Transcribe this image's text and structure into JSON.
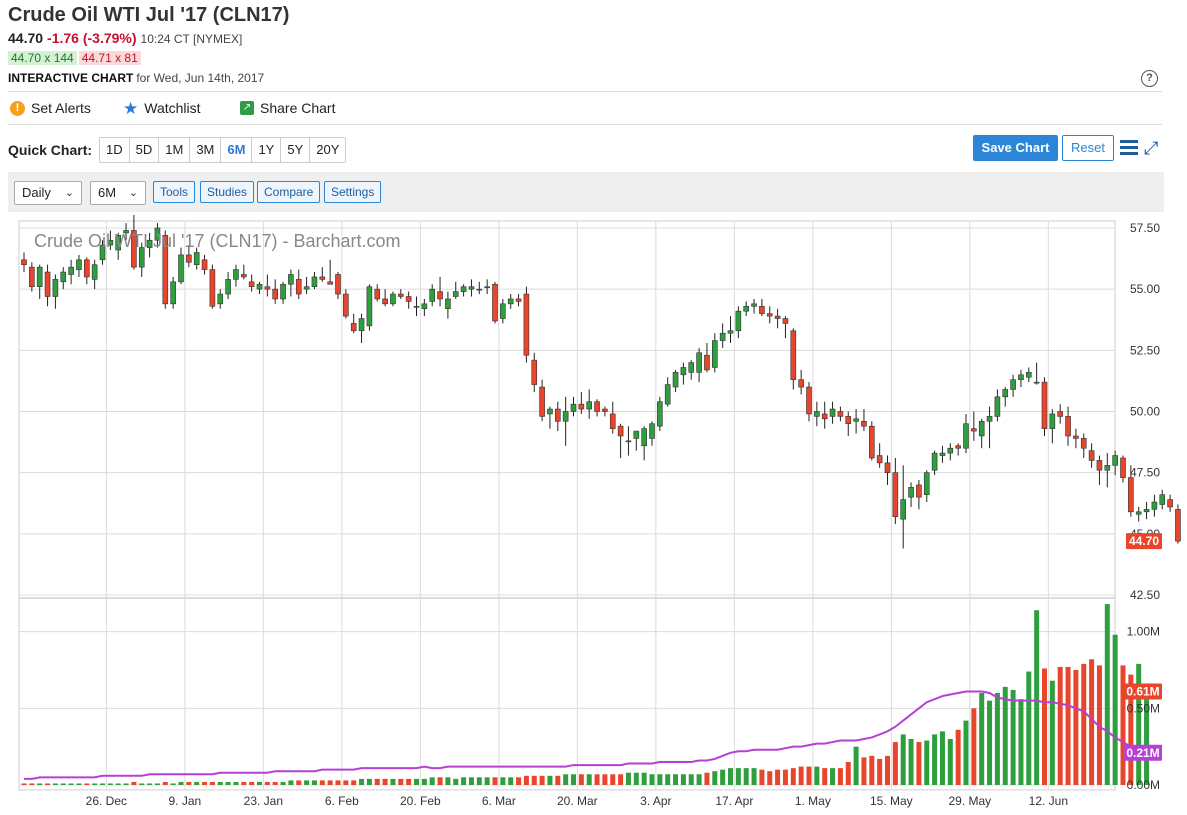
{
  "header": {
    "title": "Crude Oil WTI Jul '17 (CLN17)",
    "last": "44.70",
    "change": "-1.76 (-3.79%)",
    "time": "10:24 CT [NYMEX]",
    "bid": "44.70 x 144",
    "ask": "44.71 x 81",
    "chart_title_bold": "INTERACTIVE CHART",
    "chart_title_date": "for Wed, Jun 14th, 2017",
    "help": "?"
  },
  "actions": {
    "alerts": "Set Alerts",
    "watchlist": "Watchlist",
    "share": "Share Chart",
    "alert_glyph": "!",
    "star_glyph": "★",
    "share_glyph": "↗"
  },
  "quick_chart": {
    "label": "Quick Chart:",
    "ranges": [
      "1D",
      "5D",
      "1M",
      "3M",
      "6M",
      "1Y",
      "5Y",
      "20Y"
    ],
    "active": "6M",
    "save": "Save Chart",
    "reset": "Reset",
    "expand_glyph": "⤢"
  },
  "toolbar": {
    "period": "Daily",
    "range": "6M",
    "tools": "Tools",
    "studies": "Studies",
    "compare": "Compare",
    "settings": "Settings",
    "chev": "⌄"
  },
  "colors": {
    "up": "#2e9e3e",
    "down": "#e8452c",
    "ma": "#b73fd6",
    "grid": "#dcdcdc",
    "accent": "#2b86d8"
  },
  "chart_data": {
    "type": "candlestick",
    "title": "Crude Oil WTI Jul '17 (CLN17) - Barchart.com",
    "x_ticks": [
      "26. Dec",
      "9. Jan",
      "23. Jan",
      "6. Feb",
      "20. Feb",
      "6. Mar",
      "20. Mar",
      "3. Apr",
      "17. Apr",
      "1. May",
      "15. May",
      "29. May",
      "12. Jun"
    ],
    "price_axis": {
      "ticks": [
        "57.50",
        "55.00",
        "52.50",
        "50.00",
        "47.50",
        "45.00",
        "42.50"
      ],
      "ylim": [
        42.5,
        57.5
      ]
    },
    "last_price_label": "44.70",
    "candles": [
      [
        56.2,
        56.5,
        55.7,
        56.0
      ],
      [
        55.9,
        56.1,
        54.9,
        55.1
      ],
      [
        55.1,
        56.0,
        54.6,
        55.9
      ],
      [
        55.7,
        56.0,
        54.3,
        54.7
      ],
      [
        54.7,
        55.6,
        54.2,
        55.4
      ],
      [
        55.3,
        55.9,
        55.0,
        55.7
      ],
      [
        55.6,
        56.2,
        55.2,
        55.9
      ],
      [
        55.8,
        56.4,
        55.5,
        56.2
      ],
      [
        56.2,
        56.3,
        55.2,
        55.5
      ],
      [
        55.4,
        56.2,
        55.0,
        56.0
      ],
      [
        56.2,
        57.0,
        56.0,
        56.8
      ],
      [
        56.8,
        57.4,
        56.6,
        57.0
      ],
      [
        56.6,
        57.3,
        56.2,
        57.2
      ],
      [
        57.3,
        57.7,
        57.0,
        57.4
      ],
      [
        57.4,
        58.3,
        55.8,
        55.9
      ],
      [
        55.9,
        56.9,
        55.5,
        56.7
      ],
      [
        56.7,
        57.3,
        56.3,
        57.0
      ],
      [
        57.0,
        57.7,
        56.7,
        57.5
      ],
      [
        57.2,
        57.4,
        54.2,
        54.4
      ],
      [
        54.4,
        55.5,
        54.2,
        55.3
      ],
      [
        55.3,
        56.7,
        55.2,
        56.4
      ],
      [
        56.4,
        56.8,
        55.9,
        56.1
      ],
      [
        56.0,
        56.7,
        55.8,
        56.5
      ],
      [
        56.2,
        56.4,
        55.6,
        55.8
      ],
      [
        55.8,
        56.0,
        54.2,
        54.3
      ],
      [
        54.4,
        55.0,
        54.2,
        54.8
      ],
      [
        54.8,
        55.7,
        54.6,
        55.4
      ],
      [
        55.4,
        56.0,
        55.1,
        55.8
      ],
      [
        55.6,
        56.0,
        55.4,
        55.5
      ],
      [
        55.3,
        55.6,
        54.9,
        55.1
      ],
      [
        55.0,
        55.3,
        54.8,
        55.2
      ],
      [
        55.1,
        55.6,
        54.7,
        55.0
      ],
      [
        55.0,
        55.4,
        54.4,
        54.6
      ],
      [
        54.6,
        55.3,
        54.4,
        55.2
      ],
      [
        55.2,
        55.8,
        54.7,
        55.6
      ],
      [
        55.4,
        55.8,
        54.6,
        54.8
      ],
      [
        55.0,
        55.5,
        54.8,
        55.1
      ],
      [
        55.1,
        55.7,
        55.0,
        55.5
      ],
      [
        55.5,
        55.9,
        55.3,
        55.4
      ],
      [
        55.3,
        56.2,
        55.2,
        55.2
      ],
      [
        55.6,
        55.7,
        54.6,
        54.8
      ],
      [
        54.8,
        55.0,
        53.8,
        53.9
      ],
      [
        53.6,
        54.0,
        53.2,
        53.3
      ],
      [
        53.3,
        54.0,
        52.8,
        53.8
      ],
      [
        53.5,
        55.2,
        53.3,
        55.1
      ],
      [
        55.0,
        55.2,
        54.5,
        54.6
      ],
      [
        54.6,
        55.0,
        54.3,
        54.4
      ],
      [
        54.4,
        54.9,
        54.3,
        54.8
      ],
      [
        54.8,
        55.0,
        54.6,
        54.7
      ],
      [
        54.7,
        54.9,
        54.2,
        54.5
      ],
      [
        54.3,
        54.7,
        53.9,
        54.3
      ],
      [
        54.2,
        54.6,
        53.9,
        54.4
      ],
      [
        54.5,
        55.2,
        54.3,
        55.0
      ],
      [
        54.9,
        55.5,
        54.3,
        54.6
      ],
      [
        54.2,
        54.9,
        53.8,
        54.6
      ],
      [
        54.7,
        55.3,
        54.6,
        54.9
      ],
      [
        54.9,
        55.2,
        54.7,
        55.1
      ],
      [
        55.0,
        55.4,
        54.7,
        55.1
      ],
      [
        55.0,
        55.3,
        54.8,
        55.0
      ],
      [
        55.1,
        55.4,
        54.8,
        55.1
      ],
      [
        55.2,
        55.3,
        53.6,
        53.7
      ],
      [
        53.8,
        54.6,
        53.6,
        54.4
      ],
      [
        54.4,
        54.8,
        54.2,
        54.6
      ],
      [
        54.6,
        54.8,
        54.3,
        54.5
      ],
      [
        54.8,
        55.1,
        52.0,
        52.3
      ],
      [
        52.1,
        52.4,
        50.8,
        51.1
      ],
      [
        51.0,
        51.3,
        49.6,
        49.8
      ],
      [
        49.9,
        50.2,
        49.3,
        50.1
      ],
      [
        50.1,
        50.4,
        49.2,
        49.6
      ],
      [
        49.6,
        50.6,
        48.6,
        50.0
      ],
      [
        50.0,
        50.6,
        49.8,
        50.3
      ],
      [
        50.3,
        50.8,
        49.9,
        50.1
      ],
      [
        50.1,
        50.9,
        49.7,
        50.4
      ],
      [
        50.4,
        50.5,
        49.8,
        50.0
      ],
      [
        50.1,
        50.2,
        49.8,
        50.0
      ],
      [
        49.9,
        50.4,
        49.1,
        49.3
      ],
      [
        49.4,
        49.5,
        48.1,
        49.0
      ],
      [
        48.8,
        49.4,
        48.2,
        48.8
      ],
      [
        48.9,
        49.2,
        48.4,
        49.2
      ],
      [
        48.6,
        49.4,
        48.0,
        49.3
      ],
      [
        48.9,
        49.6,
        48.6,
        49.5
      ],
      [
        49.4,
        50.6,
        49.2,
        50.4
      ],
      [
        50.3,
        51.4,
        50.2,
        51.1
      ],
      [
        51.0,
        51.7,
        50.8,
        51.6
      ],
      [
        51.5,
        52.0,
        51.1,
        51.8
      ],
      [
        51.6,
        52.1,
        51.3,
        52.0
      ],
      [
        51.6,
        52.6,
        51.2,
        52.4
      ],
      [
        52.3,
        52.8,
        51.6,
        51.7
      ],
      [
        51.8,
        53.2,
        51.6,
        52.9
      ],
      [
        52.9,
        53.6,
        52.6,
        53.2
      ],
      [
        53.2,
        53.9,
        52.8,
        53.3
      ],
      [
        53.3,
        54.3,
        53.0,
        54.1
      ],
      [
        54.1,
        54.5,
        53.9,
        54.3
      ],
      [
        54.3,
        54.6,
        54.0,
        54.4
      ],
      [
        54.3,
        54.6,
        53.9,
        54.0
      ],
      [
        54.0,
        54.3,
        53.6,
        53.9
      ],
      [
        53.9,
        54.2,
        53.4,
        53.8
      ],
      [
        53.8,
        53.9,
        53.0,
        53.6
      ],
      [
        53.3,
        53.4,
        50.9,
        51.3
      ],
      [
        51.3,
        51.7,
        50.7,
        51.0
      ],
      [
        51.0,
        51.2,
        49.6,
        49.9
      ],
      [
        49.8,
        50.4,
        49.4,
        50.0
      ],
      [
        49.9,
        50.4,
        49.3,
        49.7
      ],
      [
        49.8,
        50.4,
        49.5,
        50.1
      ],
      [
        50.0,
        50.2,
        49.6,
        49.8
      ],
      [
        49.8,
        50.0,
        49.0,
        49.5
      ],
      [
        49.6,
        50.1,
        49.1,
        49.7
      ],
      [
        49.6,
        50.1,
        49.2,
        49.4
      ],
      [
        49.4,
        49.6,
        48.0,
        48.1
      ],
      [
        48.2,
        48.7,
        47.7,
        47.9
      ],
      [
        47.9,
        48.2,
        47.0,
        47.5
      ],
      [
        47.5,
        48.1,
        45.4,
        45.7
      ],
      [
        45.6,
        47.8,
        44.4,
        46.4
      ],
      [
        46.5,
        47.1,
        46.1,
        46.9
      ],
      [
        47.0,
        47.2,
        46.0,
        46.5
      ],
      [
        46.6,
        47.6,
        46.3,
        47.5
      ],
      [
        47.6,
        48.4,
        47.4,
        48.3
      ],
      [
        48.2,
        48.6,
        47.9,
        48.3
      ],
      [
        48.3,
        48.7,
        48.0,
        48.5
      ],
      [
        48.6,
        48.7,
        48.2,
        48.5
      ],
      [
        48.5,
        49.9,
        48.3,
        49.5
      ],
      [
        49.3,
        50.0,
        48.8,
        49.2
      ],
      [
        49.0,
        49.7,
        48.5,
        49.6
      ],
      [
        49.6,
        50.2,
        48.5,
        49.8
      ],
      [
        49.8,
        50.9,
        49.6,
        50.6
      ],
      [
        50.6,
        51.0,
        50.2,
        50.9
      ],
      [
        50.9,
        51.5,
        50.6,
        51.3
      ],
      [
        51.3,
        51.7,
        51.0,
        51.5
      ],
      [
        51.4,
        51.8,
        51.2,
        51.6
      ],
      [
        51.2,
        52.0,
        51.1,
        51.2
      ],
      [
        51.2,
        51.4,
        49.0,
        49.3
      ],
      [
        49.3,
        50.1,
        48.7,
        49.9
      ],
      [
        50.0,
        50.3,
        49.5,
        49.8
      ],
      [
        49.8,
        50.2,
        48.6,
        49.0
      ],
      [
        49.0,
        49.3,
        48.5,
        48.9
      ],
      [
        48.9,
        49.1,
        48.1,
        48.5
      ],
      [
        48.4,
        48.7,
        47.7,
        48.0
      ],
      [
        48.0,
        48.2,
        47.0,
        47.6
      ],
      [
        47.6,
        48.3,
        46.9,
        47.8
      ],
      [
        47.8,
        48.4,
        47.4,
        48.2
      ],
      [
        48.1,
        48.2,
        47.1,
        47.3
      ],
      [
        47.3,
        47.8,
        45.7,
        45.9
      ],
      [
        45.8,
        46.1,
        45.5,
        45.9
      ],
      [
        45.9,
        46.3,
        45.6,
        46.0
      ],
      [
        46.0,
        46.6,
        45.7,
        46.3
      ],
      [
        46.2,
        46.8,
        46.0,
        46.6
      ],
      [
        46.4,
        46.6,
        45.9,
        46.1
      ],
      [
        46.0,
        46.2,
        44.6,
        44.7
      ]
    ],
    "volume": {
      "ticks": [
        "1.00M",
        "0.50M",
        "0.00M"
      ],
      "ylim": [
        0,
        1.2
      ],
      "last_label": "0.61M",
      "ma_label": "0.21M",
      "values": [
        0.01,
        0.01,
        0.01,
        0.01,
        0.01,
        0.01,
        0.01,
        0.01,
        0.01,
        0.01,
        0.01,
        0.01,
        0.01,
        0.01,
        0.02,
        0.01,
        0.01,
        0.01,
        0.02,
        0.01,
        0.02,
        0.02,
        0.02,
        0.02,
        0.02,
        0.02,
        0.02,
        0.02,
        0.02,
        0.02,
        0.02,
        0.02,
        0.02,
        0.02,
        0.03,
        0.03,
        0.03,
        0.03,
        0.03,
        0.03,
        0.03,
        0.03,
        0.03,
        0.04,
        0.04,
        0.04,
        0.04,
        0.04,
        0.04,
        0.04,
        0.04,
        0.04,
        0.05,
        0.05,
        0.05,
        0.04,
        0.05,
        0.05,
        0.05,
        0.05,
        0.05,
        0.05,
        0.05,
        0.05,
        0.06,
        0.06,
        0.06,
        0.06,
        0.06,
        0.07,
        0.07,
        0.07,
        0.07,
        0.07,
        0.07,
        0.07,
        0.07,
        0.08,
        0.08,
        0.08,
        0.07,
        0.07,
        0.07,
        0.07,
        0.07,
        0.07,
        0.07,
        0.08,
        0.09,
        0.1,
        0.11,
        0.11,
        0.11,
        0.11,
        0.1,
        0.09,
        0.1,
        0.1,
        0.11,
        0.12,
        0.12,
        0.12,
        0.11,
        0.11,
        0.11,
        0.15,
        0.25,
        0.18,
        0.19,
        0.17,
        0.19,
        0.28,
        0.33,
        0.3,
        0.28,
        0.29,
        0.33,
        0.35,
        0.3,
        0.36,
        0.42,
        0.5,
        0.6,
        0.55,
        0.6,
        0.64,
        0.62,
        0.56,
        0.74,
        1.14,
        0.76,
        0.68,
        0.77,
        0.77,
        0.75,
        0.79,
        0.82,
        0.78,
        1.18,
        0.98,
        0.78,
        0.72,
        0.79,
        0.61
      ],
      "ma": [
        0.04,
        0.04,
        0.05,
        0.05,
        0.05,
        0.05,
        0.05,
        0.05,
        0.05,
        0.05,
        0.06,
        0.06,
        0.06,
        0.06,
        0.06,
        0.06,
        0.07,
        0.07,
        0.07,
        0.07,
        0.07,
        0.07,
        0.07,
        0.07,
        0.07,
        0.08,
        0.08,
        0.08,
        0.08,
        0.08,
        0.08,
        0.08,
        0.09,
        0.09,
        0.09,
        0.09,
        0.09,
        0.09,
        0.1,
        0.1,
        0.1,
        0.1,
        0.1,
        0.11,
        0.11,
        0.11,
        0.11,
        0.11,
        0.11,
        0.11,
        0.11,
        0.12,
        0.11,
        0.11,
        0.12,
        0.12,
        0.12,
        0.12,
        0.12,
        0.12,
        0.12,
        0.12,
        0.12,
        0.12,
        0.12,
        0.12,
        0.12,
        0.12,
        0.12,
        0.12,
        0.13,
        0.13,
        0.13,
        0.13,
        0.13,
        0.13,
        0.13,
        0.14,
        0.14,
        0.14,
        0.14,
        0.15,
        0.15,
        0.15,
        0.15,
        0.15,
        0.16,
        0.16,
        0.17,
        0.19,
        0.21,
        0.22,
        0.22,
        0.23,
        0.23,
        0.23,
        0.23,
        0.24,
        0.25,
        0.25,
        0.26,
        0.27,
        0.27,
        0.28,
        0.29,
        0.29,
        0.29,
        0.3,
        0.31,
        0.33,
        0.35,
        0.38,
        0.42,
        0.46,
        0.5,
        0.54,
        0.56,
        0.58,
        0.59,
        0.6,
        0.61,
        0.61,
        0.61,
        0.6,
        0.57,
        0.56,
        0.55,
        0.55,
        0.55,
        0.55,
        0.54,
        0.54,
        0.53,
        0.52,
        0.5,
        0.48,
        0.43,
        0.38,
        0.35,
        0.31,
        0.28,
        0.25,
        0.23,
        0.21
      ]
    }
  }
}
